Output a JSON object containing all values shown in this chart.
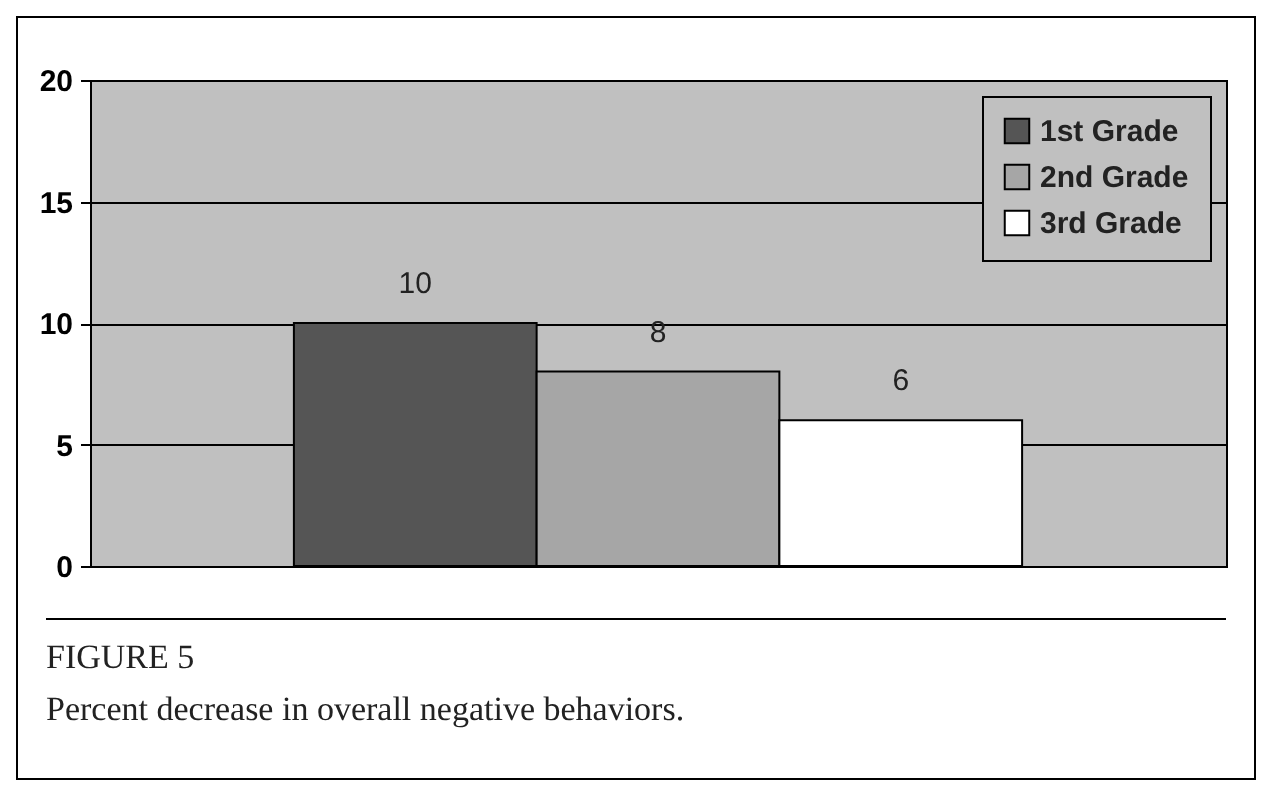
{
  "chart_data": {
    "type": "bar",
    "categories": [
      null
    ],
    "series": [
      {
        "name": "1st Grade",
        "color": "#555555",
        "values": [
          10
        ]
      },
      {
        "name": "2nd Grade",
        "color": "#a6a6a6",
        "values": [
          8
        ]
      },
      {
        "name": "3rd Grade",
        "color": "#ffffff",
        "values": [
          6
        ]
      }
    ],
    "ylim": [
      0,
      20
    ],
    "yticks": [
      0,
      5,
      10,
      15,
      20
    ],
    "grid": "y",
    "legend": "top right",
    "data_labels": true,
    "annotations": [
      "FIGURE 5",
      "Percent decrease in overall negative behaviors."
    ]
  }
}
